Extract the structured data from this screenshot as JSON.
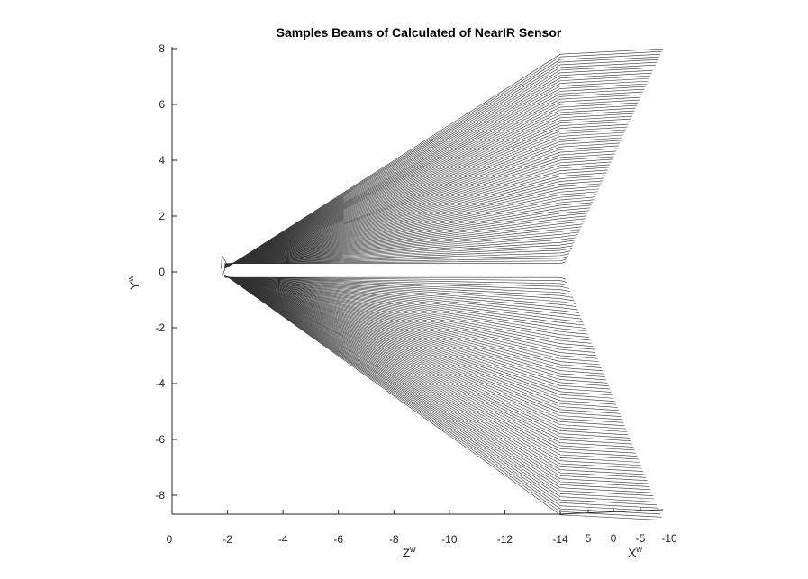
{
  "chart_data": {
    "type": "line",
    "title": "Samples Beams of Calculated of NearIR Sensor",
    "xlabel": "Z",
    "xlabel_sup": "w",
    "ylabel": "Y",
    "ylabel_sup": "w",
    "x2label": "X",
    "x2label_sup": "w",
    "x_ticks": [
      "0",
      "-2",
      "-4",
      "-6",
      "-8",
      "-10",
      "-12",
      "-14"
    ],
    "x2_ticks": [
      "5",
      "0",
      "-5",
      "-10"
    ],
    "y_ticks": [
      "8",
      "6",
      "4",
      "2",
      "0",
      "-2",
      "-4",
      "-6",
      "-8"
    ],
    "zlim": [
      0,
      -14
    ],
    "xlim": [
      5,
      -10
    ],
    "ylim": [
      -8.7,
      8.1
    ],
    "grid": false,
    "beams": {
      "origin_z": -1.9,
      "end_z": -14,
      "count_top": 80,
      "count_bottom": 80,
      "y_top_range": [
        0.3,
        7.8
      ],
      "y_bottom_range": [
        -0.2,
        -8.7
      ],
      "spread_x_range": [
        5,
        -10
      ],
      "color": "#333333"
    }
  }
}
